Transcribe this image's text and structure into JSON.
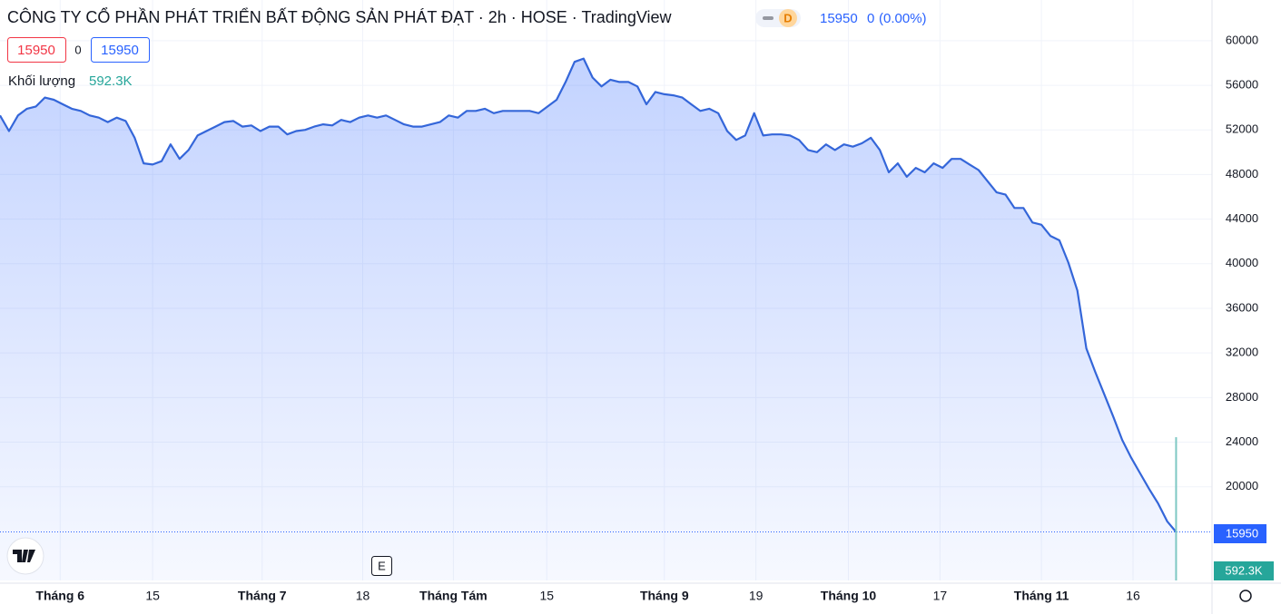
{
  "chart_data": {
    "type": "area",
    "title": "CÔNG TY CỔ PHẦN PHÁT TRIỂN BẤT ĐỘNG SẢN PHÁT ĐẠT · 2h · HOSE · TradingView",
    "interval_badge": "D",
    "last": 15950,
    "change": 0,
    "change_pct_label": "(0.00%)",
    "volume_label": "Khối lượng",
    "volume": 592300,
    "volume_value_label": "592.3K",
    "event_marker": "E",
    "color": "#3466d9",
    "values": [
      53300,
      51900,
      53300,
      53900,
      54100,
      54900,
      54700,
      54300,
      53900,
      53700,
      53300,
      53100,
      52700,
      53100,
      52800,
      51300,
      49000,
      48900,
      49200,
      50700,
      49400,
      50200,
      51500,
      51900,
      52300,
      52700,
      52800,
      52300,
      52400,
      51900,
      52300,
      52300,
      51600,
      51900,
      52000,
      52300,
      52500,
      52400,
      52900,
      52700,
      53100,
      53300,
      53100,
      53300,
      52900,
      52500,
      52300,
      52300,
      52500,
      52700,
      53300,
      53100,
      53700,
      53700,
      53900,
      53500,
      53700,
      53700,
      53700,
      53700,
      53500,
      54100,
      54700,
      56300,
      58100,
      58400,
      56700,
      55900,
      56500,
      56300,
      56300,
      55900,
      54300,
      55400,
      55200,
      55100,
      54900,
      54300,
      53700,
      53900,
      53500,
      51900,
      51100,
      51500,
      53500,
      51500,
      51600,
      51600,
      51500,
      51100,
      50200,
      50000,
      50700,
      50200,
      50700,
      50500,
      50800,
      51300,
      50200,
      48200,
      49000,
      47800,
      48600,
      48200,
      49000,
      48600,
      49400,
      49400,
      48900,
      48400,
      47400,
      46400,
      46200,
      45000,
      45000,
      43700,
      43500,
      42500,
      42100,
      40100,
      37600,
      32400,
      30300,
      28300,
      26300,
      24200,
      22600,
      21200,
      19800,
      18500,
      16900,
      15950
    ],
    "xlim": [
      0,
      135
    ],
    "xticks": [
      {
        "value": 6.7,
        "label": "Tháng 6"
      },
      {
        "value": 17,
        "label": "15"
      },
      {
        "value": 29.2,
        "label": "Tháng 7"
      },
      {
        "value": 40.4,
        "label": "18"
      },
      {
        "value": 50.5,
        "label": "Tháng Tám"
      },
      {
        "value": 60.9,
        "label": "15"
      },
      {
        "value": 74,
        "label": "Tháng 9"
      },
      {
        "value": 84.2,
        "label": "19"
      },
      {
        "value": 94.5,
        "label": "Tháng 10"
      },
      {
        "value": 104.7,
        "label": "17"
      },
      {
        "value": 116,
        "label": "Tháng 11"
      },
      {
        "value": 126.2,
        "label": "16"
      }
    ],
    "ylim": [
      11600,
      63650
    ],
    "yticks": [
      20000,
      24000,
      28000,
      32000,
      36000,
      40000,
      44000,
      48000,
      52000,
      56000,
      60000
    ],
    "volume_ylim": [
      0,
      2400000
    ],
    "grid": true
  }
}
